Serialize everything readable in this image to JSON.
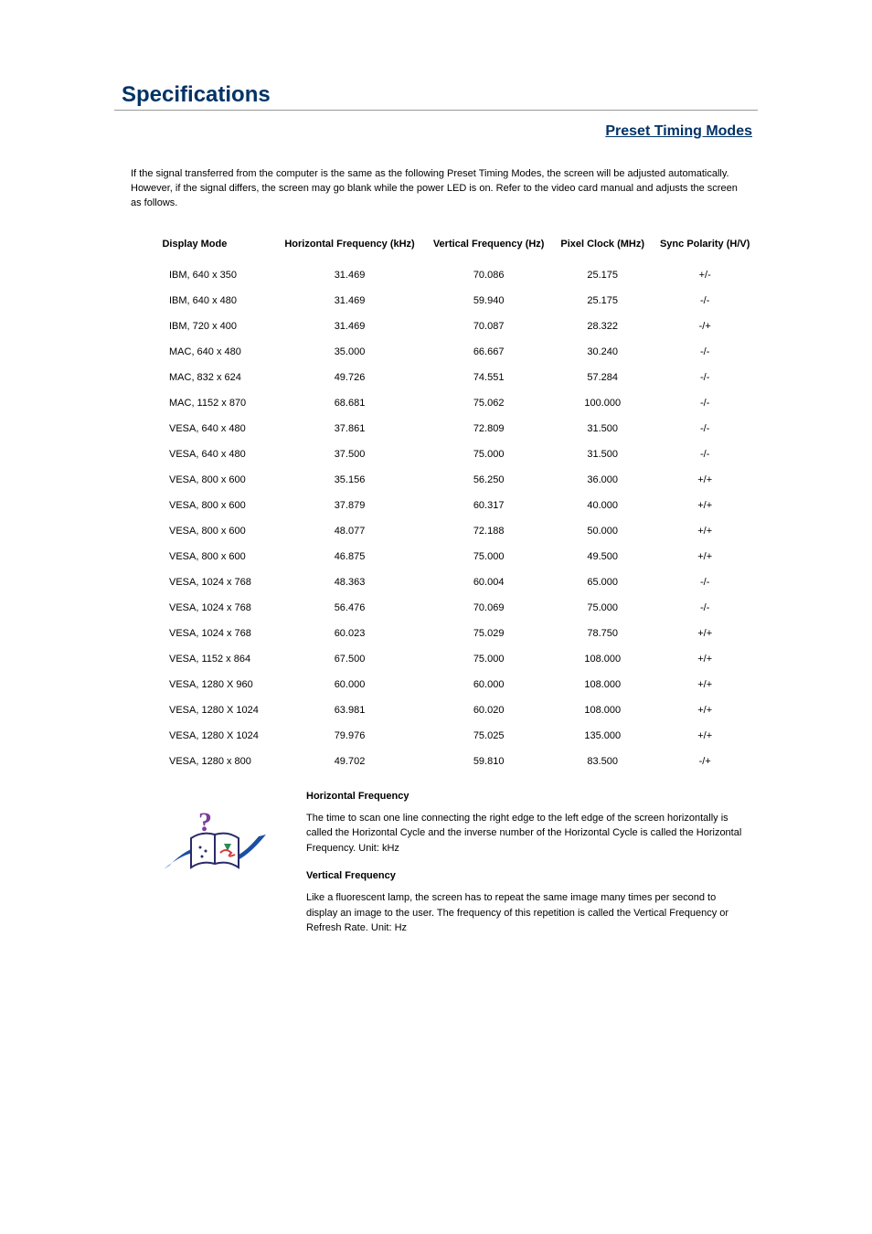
{
  "page": {
    "title": "Specifications",
    "subtitle": "Preset Timing Modes",
    "intro": "If the signal transferred from the computer is the same as the following Preset Timing Modes, the screen will be adjusted automatically. However, if the signal differs, the screen may go blank while the power LED is on. Refer to the video card manual and adjusts the screen as follows."
  },
  "table": {
    "headers": {
      "display_mode": "Display Mode",
      "h_freq": "Horizontal Frequency (kHz)",
      "v_freq": "Vertical Frequency (Hz)",
      "pixel_clock": "Pixel Clock (MHz)",
      "sync": "Sync Polarity (H/V)"
    },
    "rows": [
      {
        "mode": "IBM, 640 x 350",
        "h": "31.469",
        "v": "70.086",
        "p": "25.175",
        "s": "+/-"
      },
      {
        "mode": "IBM, 640 x 480",
        "h": "31.469",
        "v": "59.940",
        "p": "25.175",
        "s": "-/-"
      },
      {
        "mode": "IBM, 720 x 400",
        "h": "31.469",
        "v": "70.087",
        "p": "28.322",
        "s": "-/+"
      },
      {
        "mode": "MAC, 640 x 480",
        "h": "35.000",
        "v": "66.667",
        "p": "30.240",
        "s": "-/-"
      },
      {
        "mode": "MAC, 832 x 624",
        "h": "49.726",
        "v": "74.551",
        "p": "57.284",
        "s": "-/-"
      },
      {
        "mode": "MAC, 1152 x 870",
        "h": "68.681",
        "v": "75.062",
        "p": "100.000",
        "s": "-/-"
      },
      {
        "mode": "VESA, 640 x 480",
        "h": "37.861",
        "v": "72.809",
        "p": "31.500",
        "s": "-/-"
      },
      {
        "mode": "VESA, 640 x 480",
        "h": "37.500",
        "v": "75.000",
        "p": "31.500",
        "s": "-/-"
      },
      {
        "mode": "VESA, 800 x 600",
        "h": "35.156",
        "v": "56.250",
        "p": "36.000",
        "s": "+/+"
      },
      {
        "mode": "VESA, 800 x 600",
        "h": "37.879",
        "v": "60.317",
        "p": "40.000",
        "s": "+/+"
      },
      {
        "mode": "VESA, 800 x 600",
        "h": "48.077",
        "v": "72.188",
        "p": "50.000",
        "s": "+/+"
      },
      {
        "mode": "VESA, 800 x 600",
        "h": "46.875",
        "v": "75.000",
        "p": "49.500",
        "s": "+/+"
      },
      {
        "mode": "VESA, 1024 x 768",
        "h": "48.363",
        "v": "60.004",
        "p": "65.000",
        "s": "-/-"
      },
      {
        "mode": "VESA, 1024 x 768",
        "h": "56.476",
        "v": "70.069",
        "p": "75.000",
        "s": "-/-"
      },
      {
        "mode": "VESA, 1024 x 768",
        "h": "60.023",
        "v": "75.029",
        "p": "78.750",
        "s": "+/+"
      },
      {
        "mode": "VESA, 1152 x 864",
        "h": "67.500",
        "v": "75.000",
        "p": "108.000",
        "s": "+/+"
      },
      {
        "mode": "VESA, 1280 X 960",
        "h": "60.000",
        "v": "60.000",
        "p": "108.000",
        "s": "+/+"
      },
      {
        "mode": "VESA, 1280 X 1024",
        "h": "63.981",
        "v": "60.020",
        "p": "108.000",
        "s": "+/+"
      },
      {
        "mode": "VESA, 1280 X 1024",
        "h": "79.976",
        "v": "75.025",
        "p": "135.000",
        "s": "+/+"
      },
      {
        "mode": "VESA, 1280 x 800",
        "h": "49.702",
        "v": "59.810",
        "p": "83.500",
        "s": "-/+"
      }
    ]
  },
  "definitions": {
    "horizontal": {
      "title": "Horizontal Frequency",
      "body": "The time to scan one line connecting the right edge to the left edge of the screen horizontally is called the Horizontal Cycle and the inverse number of the Horizontal Cycle is called the Horizontal Frequency. Unit: kHz"
    },
    "vertical": {
      "title": "Vertical Frequency",
      "body": "Like a fluorescent lamp, the screen has to repeat the same image many times per second to display an image to the user. The frequency of this repetition is called the Vertical Frequency or Refresh Rate. Unit: Hz"
    }
  },
  "colors": {
    "heading": "#003366",
    "text": "#000000",
    "rule": "#999999",
    "icon_blue": "#1a4fa3",
    "icon_qmark": "#7a3e9d",
    "icon_red": "#d63a3a",
    "icon_green": "#2e8b57",
    "icon_outline": "#2a2a6a"
  }
}
